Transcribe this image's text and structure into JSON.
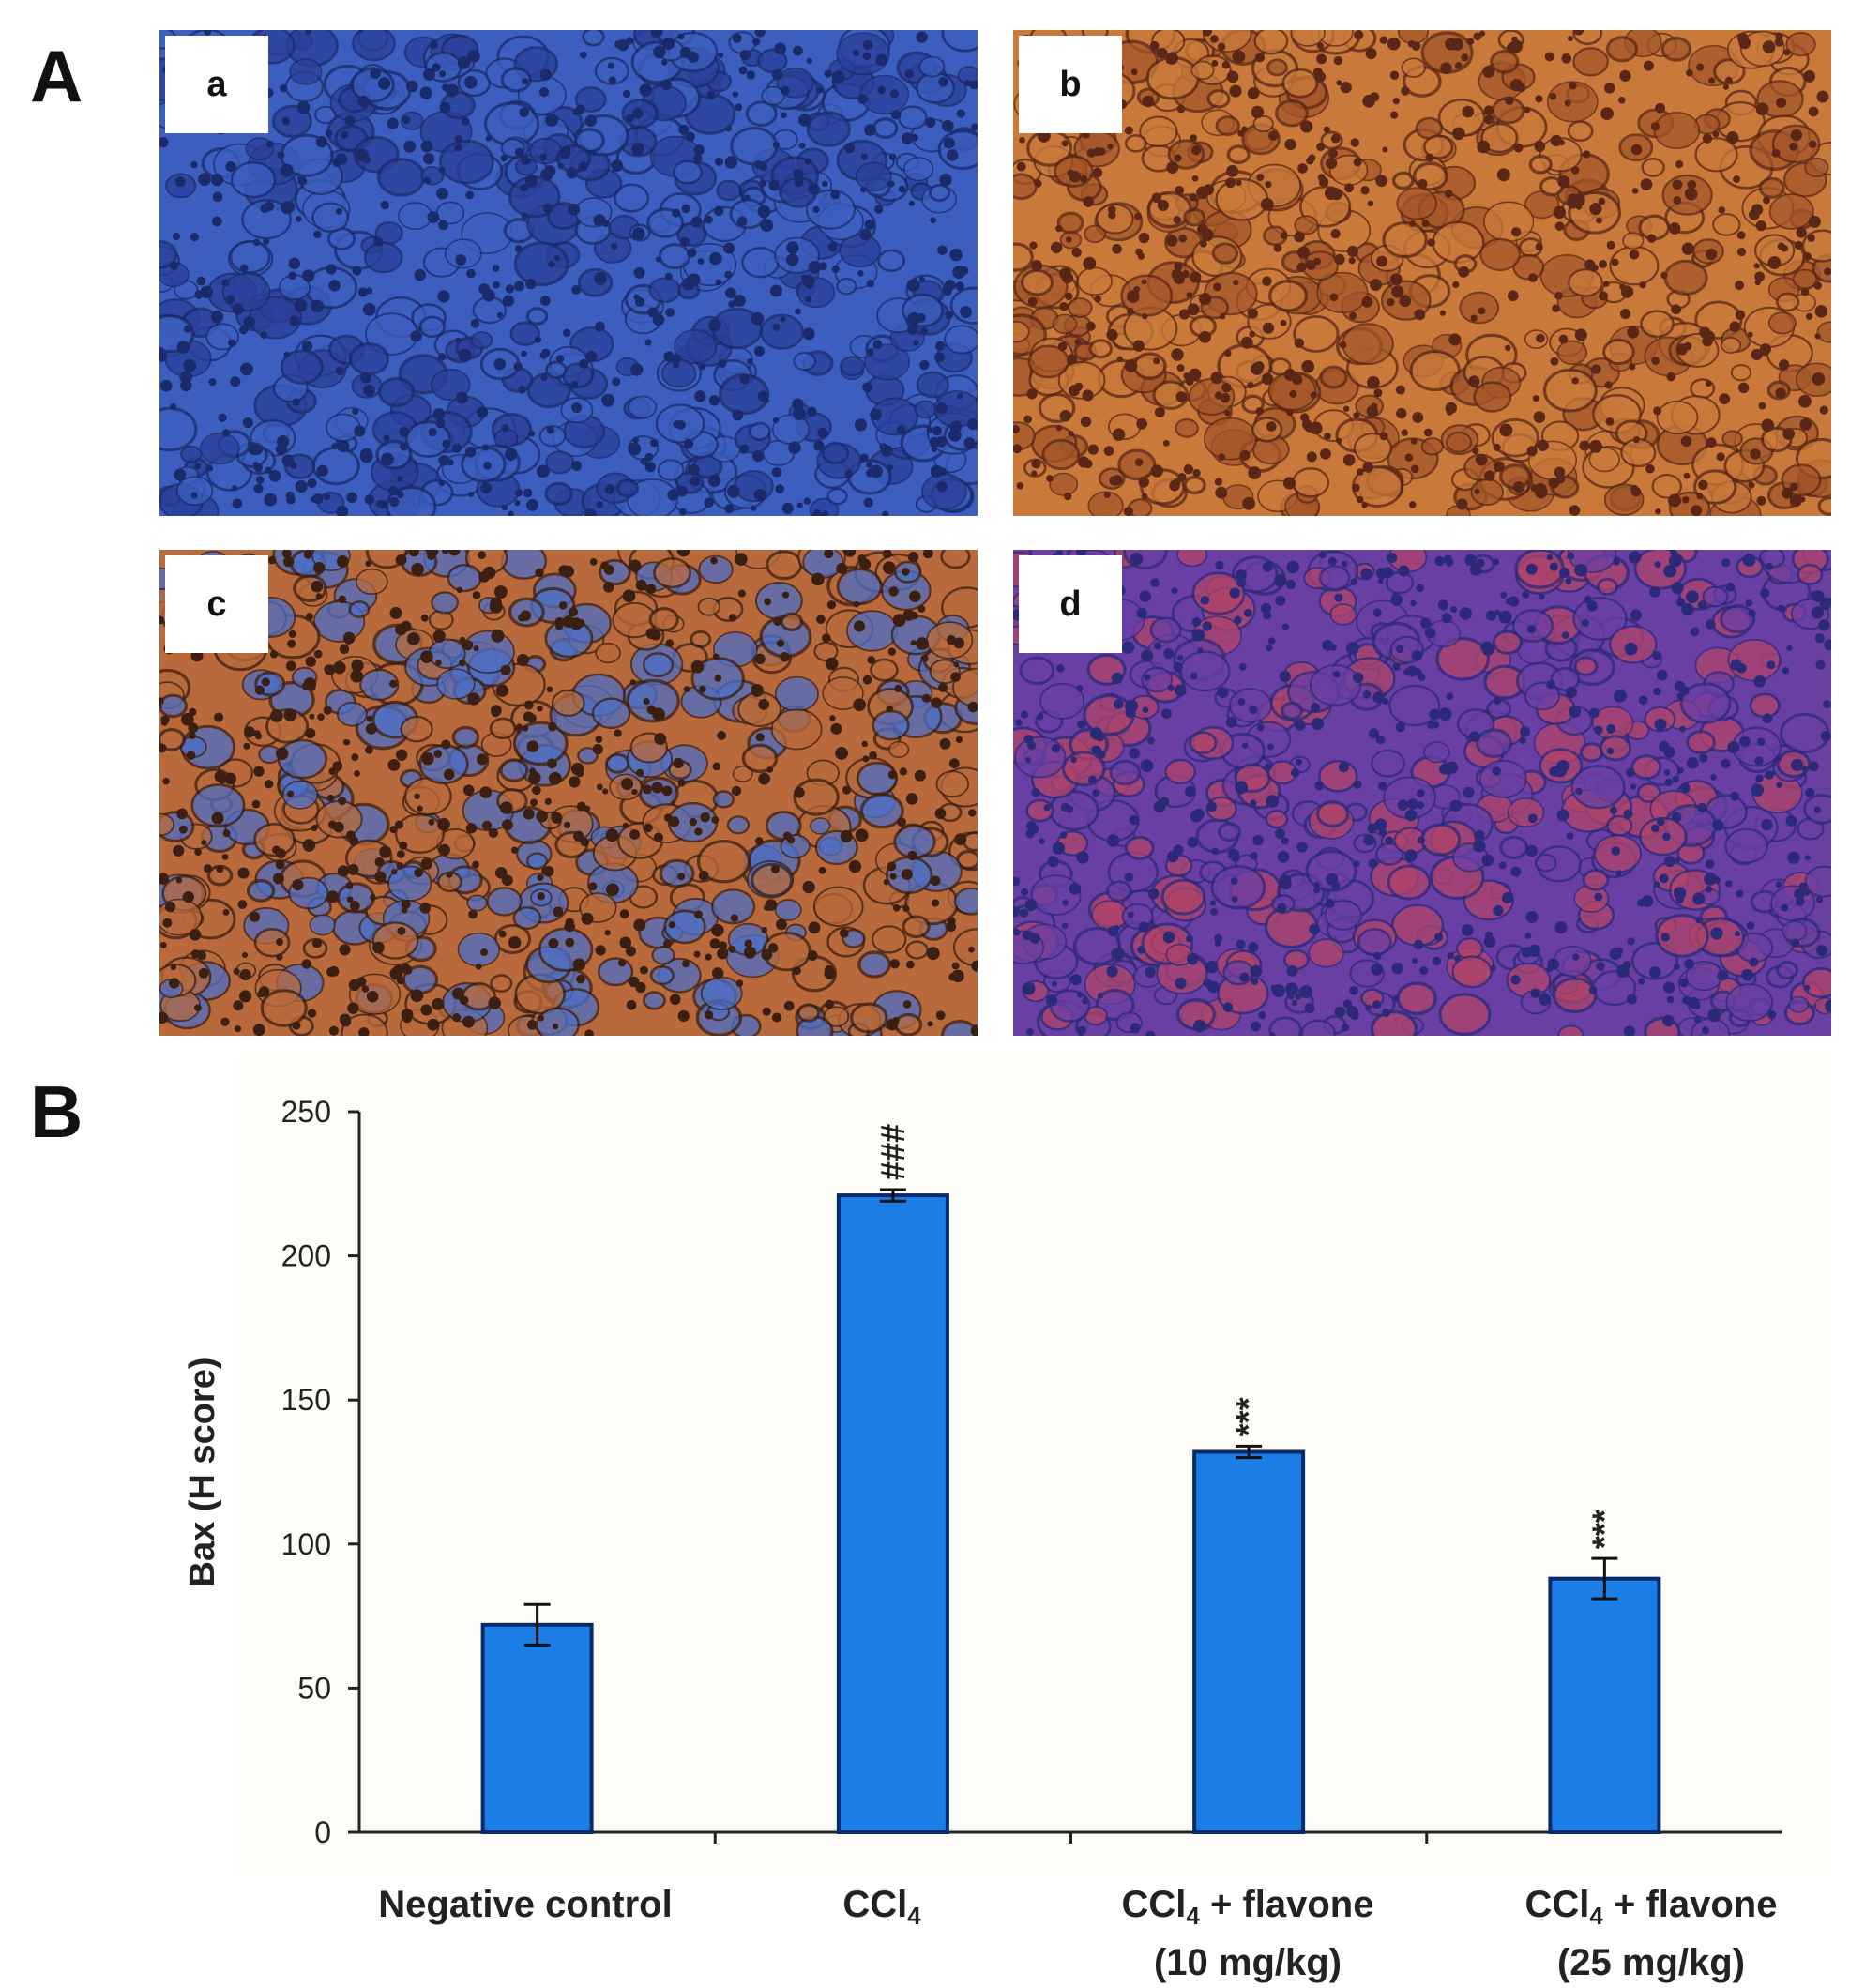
{
  "figure": {
    "panel_a_label": "A",
    "panel_b_label": "B",
    "micrographs": [
      {
        "label": "a",
        "stain": "blue",
        "colors": [
          "#3c5fbf",
          "#2a3f9a",
          "#1b2a6a"
        ]
      },
      {
        "label": "b",
        "stain": "brown",
        "colors": [
          "#c97a3a",
          "#a4562a",
          "#5a2616"
        ]
      },
      {
        "label": "c",
        "stain": "brown-blue",
        "colors": [
          "#b86a3c",
          "#4d6fc6",
          "#3a1f12"
        ]
      },
      {
        "label": "d",
        "stain": "purple",
        "colors": [
          "#6a3fa4",
          "#b0446a",
          "#2c2a78"
        ]
      }
    ]
  },
  "chart_data": {
    "type": "bar",
    "categories": [
      "Negative control",
      "CCl4",
      "CCl4 + flavone (10 mg/kg)",
      "CCl4 + flavone (25 mg/kg)"
    ],
    "category_display": [
      {
        "line1_main": "Negative control",
        "line1_sub": "",
        "line1_rest": "",
        "line2": ""
      },
      {
        "line1_main": "CCl",
        "line1_sub": "4",
        "line1_rest": "",
        "line2": ""
      },
      {
        "line1_main": "CCl",
        "line1_sub": "4",
        "line1_rest": " + flavone",
        "line2": "(10 mg/kg)"
      },
      {
        "line1_main": "CCl",
        "line1_sub": "4",
        "line1_rest": " + flavone",
        "line2": "(25 mg/kg)"
      }
    ],
    "values": [
      72,
      221,
      132,
      88
    ],
    "errors": [
      7,
      2,
      2,
      7
    ],
    "significance": [
      "",
      "###",
      "***",
      "***"
    ],
    "ylabel": "Bax (H score)",
    "xlabel": "",
    "ylim": [
      0,
      250
    ],
    "yticks": [
      0,
      50,
      100,
      150,
      200,
      250
    ],
    "grid": false,
    "bar_color": "#1a7ee6",
    "bar_edge": "#0a2a6a"
  }
}
